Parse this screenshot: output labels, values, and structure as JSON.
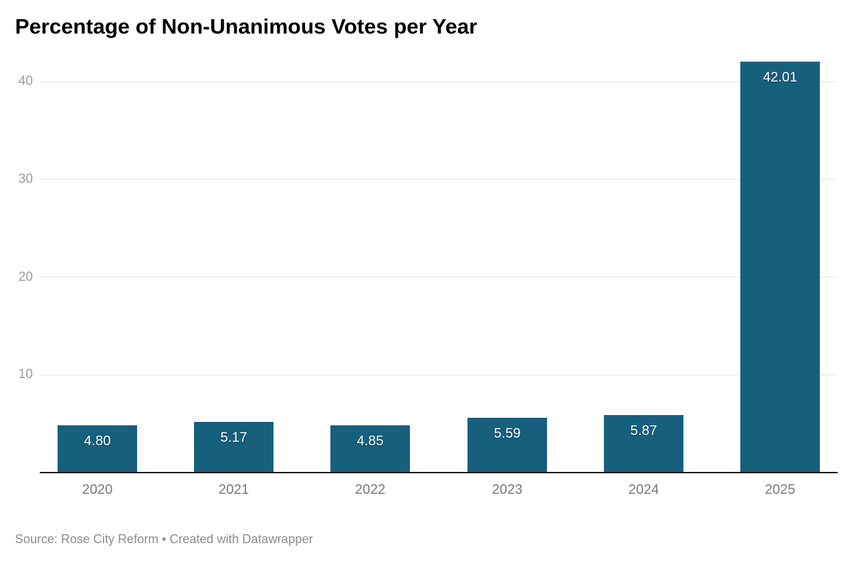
{
  "title": "Percentage of Non-Unanimous Votes per Year",
  "footer_text": "Source: Rose City Reform • Created with Datawrapper",
  "chart_data": {
    "type": "bar",
    "title": "Percentage of Non-Unanimous Votes per Year",
    "categories": [
      "2020",
      "2021",
      "2022",
      "2023",
      "2024",
      "2025"
    ],
    "values": [
      4.8,
      5.17,
      4.85,
      5.59,
      5.87,
      42.01
    ],
    "value_labels": [
      "4.80",
      "5.17",
      "4.85",
      "5.59",
      "5.87",
      "42.01"
    ],
    "xlabel": "",
    "ylabel": "",
    "y_ticks": [
      10,
      20,
      30,
      40
    ],
    "ylim": [
      0,
      44
    ],
    "grid": true,
    "legend": false,
    "bar_color": "#16607e",
    "value_label_color": "#ffffff",
    "axis_line_color": "#161618",
    "gridline_color": "#e3e3e3",
    "ytick_color": "#9b9b9b",
    "xtick_color": "#787878",
    "source_text": "Source: Rose City Reform • Created with Datawrapper"
  }
}
